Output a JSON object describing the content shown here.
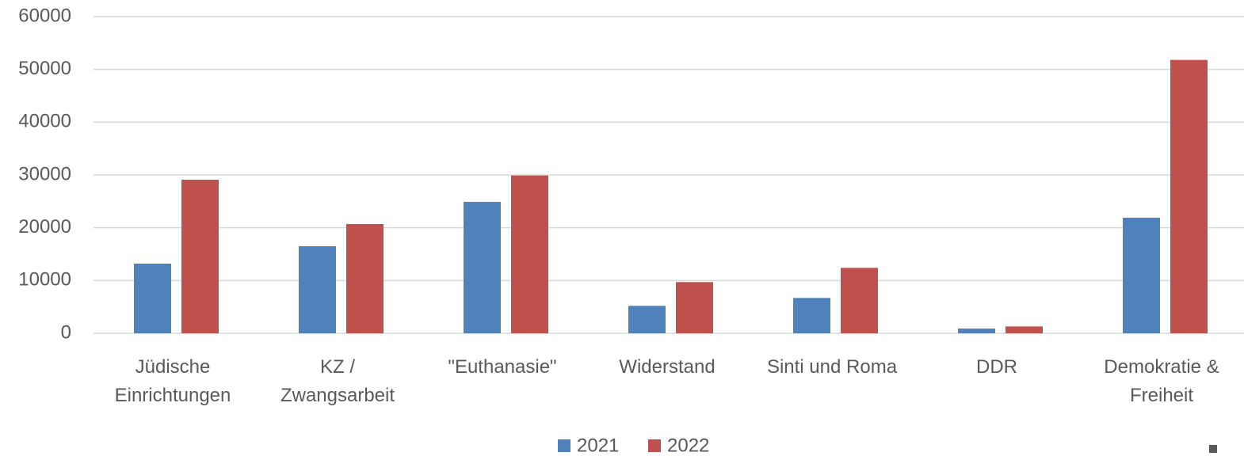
{
  "chart_data": {
    "type": "bar",
    "categories": [
      "Jüdische Einrichtungen",
      "KZ / Zwangsarbeit",
      "\"Euthanasie\"",
      "Widerstand",
      "Sinti und Roma",
      "DDR",
      "Demokratie & Freiheit"
    ],
    "series": [
      {
        "name": "2021",
        "color": "#4f81bd",
        "values": [
          13200,
          16500,
          24900,
          5200,
          6700,
          900,
          21900
        ]
      },
      {
        "name": "2022",
        "color": "#c0504d",
        "values": [
          29100,
          20700,
          29900,
          9700,
          12400,
          1300,
          51800
        ]
      }
    ],
    "ylim": [
      0,
      60000
    ],
    "yticks": [
      0,
      10000,
      20000,
      30000,
      40000,
      50000,
      60000
    ],
    "grid": true,
    "legend": "bottom"
  }
}
